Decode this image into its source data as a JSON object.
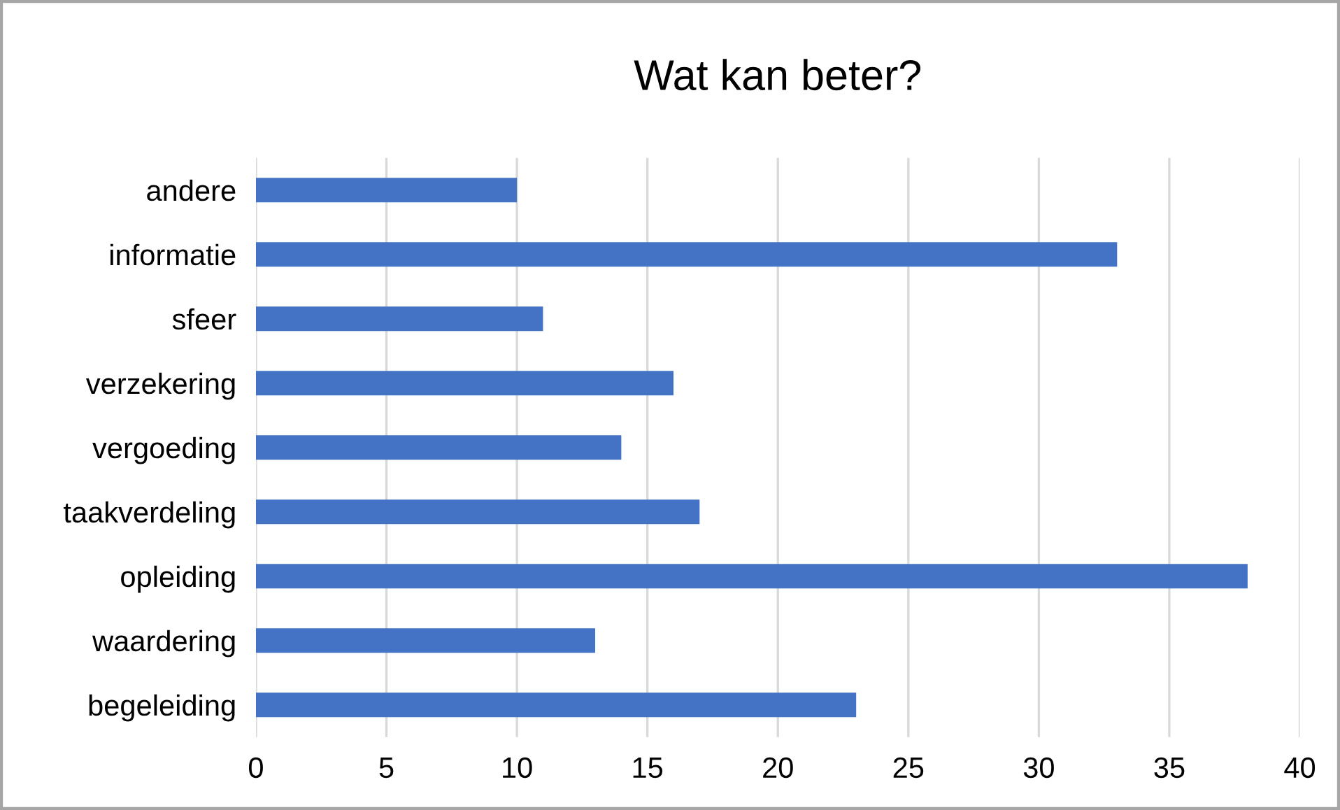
{
  "chart_data": {
    "type": "bar",
    "orientation": "horizontal",
    "title": "Wat kan beter?",
    "categories": [
      "andere",
      "informatie",
      "sfeer",
      "verzekering",
      "vergoeding",
      "taakverdeling",
      "opleiding",
      "waardering",
      "begeleiding"
    ],
    "values": [
      10,
      33,
      11,
      16,
      14,
      17,
      38,
      13,
      23
    ],
    "color": "#4472c4",
    "xlim": [
      0,
      40
    ],
    "xticks": [
      0,
      5,
      10,
      15,
      20,
      25,
      30,
      35,
      40
    ],
    "grid": "x"
  }
}
